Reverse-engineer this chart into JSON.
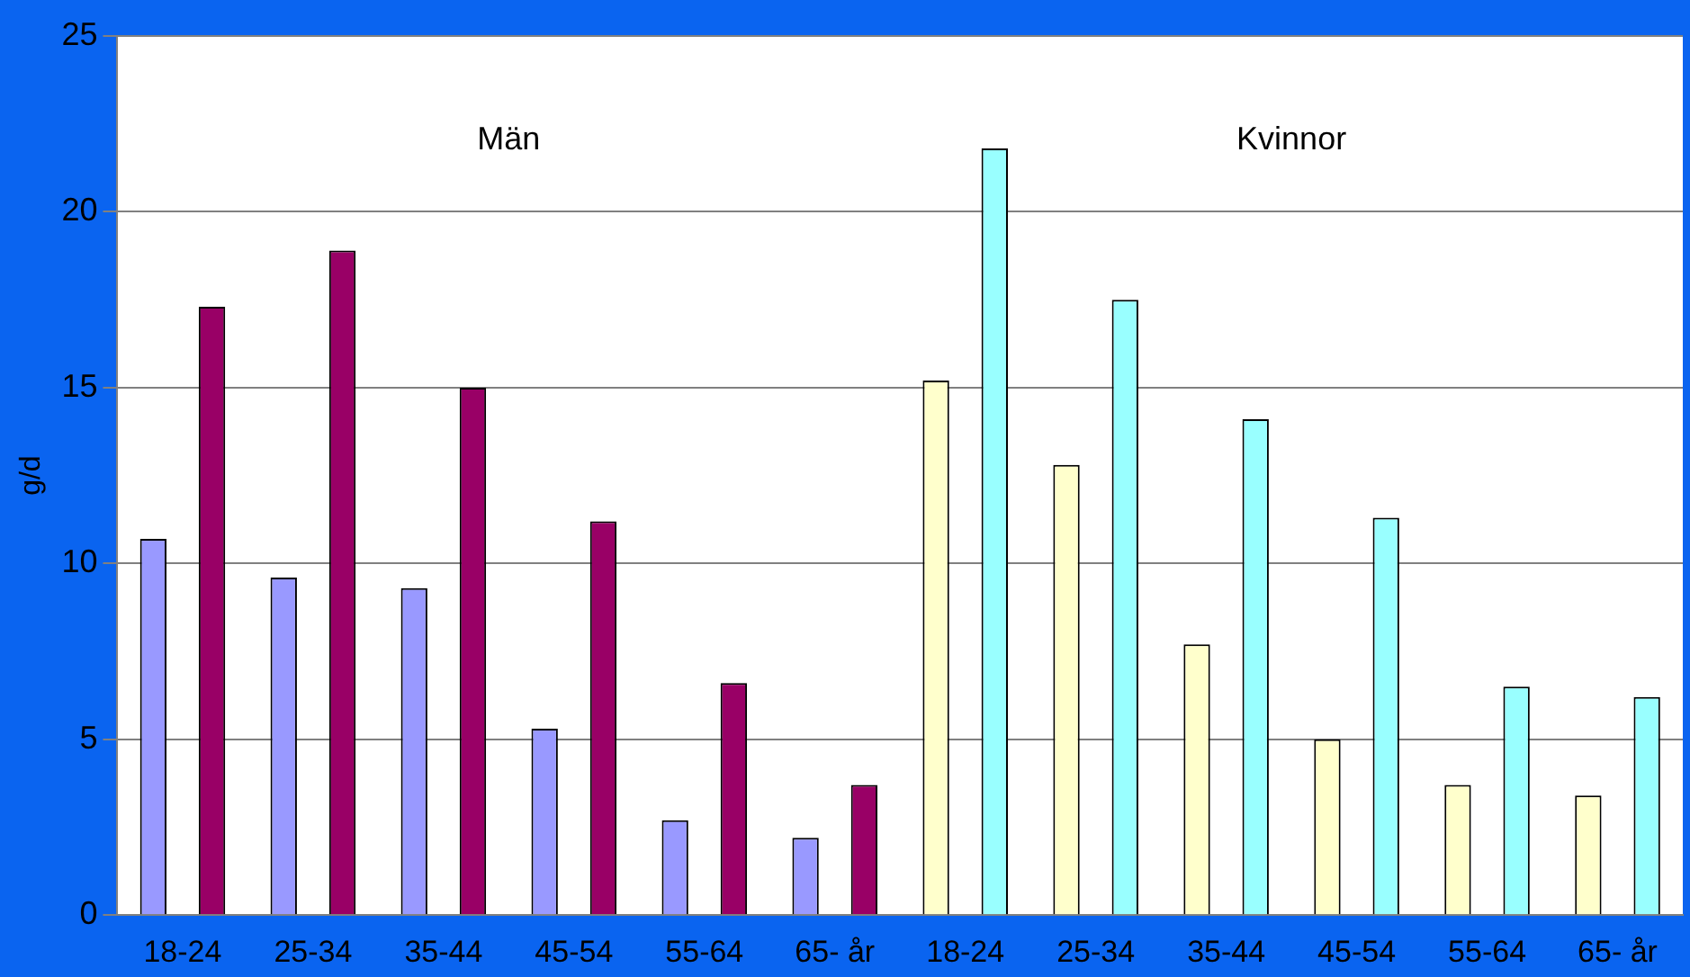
{
  "chart_data": {
    "type": "bar",
    "ylabel": "g/d",
    "categories": [
      "18-24",
      "25-34",
      "35-44",
      "45-54",
      "55-64",
      "65- år",
      "18-24",
      "25-34",
      "35-44",
      "45-54",
      "55-64",
      "65- år"
    ],
    "series": [
      {
        "color": "#9999ff",
        "values": [
          10.7,
          9.6,
          9.3,
          5.3,
          2.7,
          2.2,
          null,
          null,
          null,
          null,
          null,
          null
        ]
      },
      {
        "color": "#990066",
        "values": [
          17.3,
          18.9,
          15.0,
          11.2,
          6.6,
          3.7,
          null,
          null,
          null,
          null,
          null,
          null
        ]
      },
      {
        "color": "#ffffcc",
        "values": [
          null,
          null,
          null,
          null,
          null,
          null,
          15.2,
          12.8,
          7.7,
          5.0,
          3.7,
          3.4
        ]
      },
      {
        "color": "#99ffff",
        "values": [
          null,
          null,
          null,
          null,
          null,
          null,
          21.8,
          17.5,
          14.1,
          11.3,
          6.5,
          6.2
        ]
      }
    ],
    "annotations": [
      "Män",
      "Kvinnor"
    ],
    "ylim": [
      0,
      25
    ],
    "yticks": [
      0,
      5,
      10,
      15,
      20,
      25
    ],
    "grid": "y",
    "legend": false
  }
}
